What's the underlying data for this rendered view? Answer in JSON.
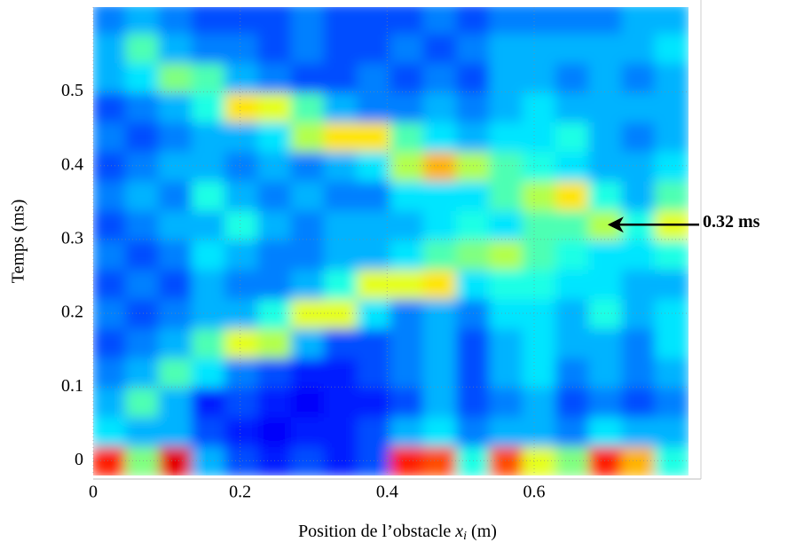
{
  "chart_data": {
    "type": "heatmap",
    "xlabel": {
      "text": "Position de l’obstacle",
      "var": "x",
      "sub": "i",
      "unit": "(m)"
    },
    "ylabel": "Temps (ms)",
    "x": [
      0.0225,
      0.0675,
      0.1125,
      0.1575,
      0.2025,
      0.2475,
      0.2925,
      0.3375,
      0.3825,
      0.4275,
      0.4725,
      0.5175,
      0.5625,
      0.6075,
      0.6525,
      0.6975,
      0.7425,
      0.7875
    ],
    "y": [
      0,
      0.04,
      0.08,
      0.12,
      0.16,
      0.2,
      0.24,
      0.28,
      0.32,
      0.36,
      0.4,
      0.44,
      0.48,
      0.52,
      0.56,
      0.6
    ],
    "z": [
      [
        0.85,
        0.5,
        0.9,
        0.3,
        0.2,
        0.15,
        0.2,
        0.15,
        0.2,
        0.85,
        0.8,
        0.4,
        0.8,
        0.6,
        0.5,
        0.85,
        0.7,
        0.4
      ],
      [
        0.35,
        0.3,
        0.3,
        0.2,
        0.15,
        0.12,
        0.15,
        0.15,
        0.2,
        0.3,
        0.35,
        0.25,
        0.3,
        0.3,
        0.25,
        0.35,
        0.3,
        0.3
      ],
      [
        0.3,
        0.45,
        0.3,
        0.15,
        0.2,
        0.15,
        0.12,
        0.15,
        0.15,
        0.2,
        0.3,
        0.2,
        0.25,
        0.3,
        0.2,
        0.25,
        0.2,
        0.25
      ],
      [
        0.25,
        0.3,
        0.45,
        0.35,
        0.25,
        0.2,
        0.15,
        0.15,
        0.2,
        0.25,
        0.3,
        0.2,
        0.3,
        0.35,
        0.25,
        0.3,
        0.25,
        0.3
      ],
      [
        0.2,
        0.25,
        0.3,
        0.45,
        0.6,
        0.55,
        0.3,
        0.2,
        0.2,
        0.25,
        0.3,
        0.2,
        0.3,
        0.35,
        0.3,
        0.3,
        0.25,
        0.35
      ],
      [
        0.25,
        0.2,
        0.25,
        0.3,
        0.3,
        0.4,
        0.6,
        0.6,
        0.35,
        0.25,
        0.3,
        0.25,
        0.35,
        0.35,
        0.3,
        0.4,
        0.3,
        0.35
      ],
      [
        0.2,
        0.25,
        0.2,
        0.3,
        0.25,
        0.25,
        0.3,
        0.4,
        0.6,
        0.6,
        0.65,
        0.35,
        0.4,
        0.4,
        0.35,
        0.35,
        0.3,
        0.3
      ],
      [
        0.25,
        0.2,
        0.25,
        0.35,
        0.3,
        0.25,
        0.25,
        0.3,
        0.3,
        0.35,
        0.45,
        0.5,
        0.55,
        0.45,
        0.4,
        0.35,
        0.35,
        0.4
      ],
      [
        0.2,
        0.25,
        0.3,
        0.3,
        0.4,
        0.3,
        0.25,
        0.3,
        0.3,
        0.3,
        0.35,
        0.4,
        0.35,
        0.45,
        0.45,
        0.55,
        0.4,
        0.6
      ],
      [
        0.25,
        0.3,
        0.25,
        0.4,
        0.3,
        0.25,
        0.3,
        0.25,
        0.25,
        0.35,
        0.35,
        0.35,
        0.45,
        0.55,
        0.65,
        0.4,
        0.3,
        0.45
      ],
      [
        0.2,
        0.25,
        0.3,
        0.3,
        0.25,
        0.3,
        0.25,
        0.3,
        0.35,
        0.55,
        0.7,
        0.55,
        0.45,
        0.4,
        0.35,
        0.3,
        0.3,
        0.35
      ],
      [
        0.25,
        0.2,
        0.25,
        0.3,
        0.3,
        0.35,
        0.55,
        0.65,
        0.65,
        0.45,
        0.35,
        0.3,
        0.35,
        0.35,
        0.4,
        0.3,
        0.25,
        0.3
      ],
      [
        0.2,
        0.25,
        0.3,
        0.4,
        0.65,
        0.6,
        0.45,
        0.3,
        0.25,
        0.25,
        0.3,
        0.25,
        0.3,
        0.35,
        0.3,
        0.3,
        0.3,
        0.3
      ],
      [
        0.3,
        0.35,
        0.5,
        0.45,
        0.3,
        0.25,
        0.2,
        0.2,
        0.25,
        0.2,
        0.25,
        0.2,
        0.3,
        0.3,
        0.25,
        0.3,
        0.25,
        0.3
      ],
      [
        0.3,
        0.45,
        0.3,
        0.25,
        0.25,
        0.2,
        0.25,
        0.2,
        0.2,
        0.25,
        0.2,
        0.25,
        0.3,
        0.3,
        0.3,
        0.3,
        0.3,
        0.35
      ],
      [
        0.25,
        0.3,
        0.25,
        0.2,
        0.2,
        0.2,
        0.25,
        0.2,
        0.2,
        0.2,
        0.25,
        0.2,
        0.25,
        0.25,
        0.25,
        0.25,
        0.3,
        0.3
      ]
    ],
    "colormap": "jet",
    "xlim": [
      0,
      0.81
    ],
    "ylim": [
      -0.02,
      0.615
    ],
    "xticks": [
      0,
      0.2,
      0.4,
      0.6
    ],
    "yticks": [
      0,
      0.1,
      0.2,
      0.3,
      0.4,
      0.5
    ],
    "grid": true,
    "annotation": {
      "text": "0.32 ms",
      "x": 0.7,
      "y": 0.32
    }
  }
}
